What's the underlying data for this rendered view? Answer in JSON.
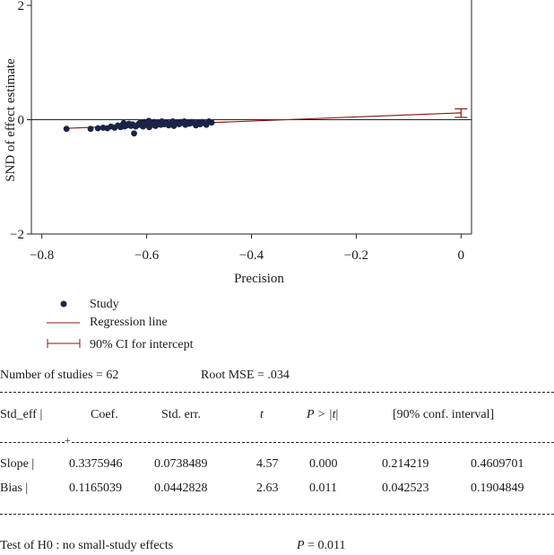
{
  "chart_data": {
    "type": "scatter",
    "xlabel": "Precision",
    "ylabel": "SND of effect estimate",
    "xlim": [
      -0.82,
      0.02
    ],
    "ylim": [
      -2.0,
      2.0
    ],
    "xticks": [
      -0.8,
      -0.6,
      -0.4,
      -0.2,
      0
    ],
    "xtick_labels": [
      "−0.8",
      "−0.6",
      "−0.4",
      "−0.2",
      "0"
    ],
    "yticks": [
      2,
      0,
      -2
    ],
    "ytick_labels": [
      "2",
      "0",
      "−2"
    ],
    "reference_line_y": 0,
    "regression_line": {
      "x": [
        -0.75,
        0.0
      ],
      "y": [
        -0.15,
        0.12
      ]
    },
    "intercept_ci": {
      "x": 0.0,
      "low": 0.04,
      "high": 0.19
    },
    "points": [
      {
        "x": -0.753,
        "y": -0.16
      },
      {
        "x": -0.707,
        "y": -0.16
      },
      {
        "x": -0.693,
        "y": -0.15
      },
      {
        "x": -0.683,
        "y": -0.14
      },
      {
        "x": -0.675,
        "y": -0.15
      },
      {
        "x": -0.668,
        "y": -0.12
      },
      {
        "x": -0.661,
        "y": -0.14
      },
      {
        "x": -0.655,
        "y": -0.1
      },
      {
        "x": -0.65,
        "y": -0.13
      },
      {
        "x": -0.646,
        "y": -0.09
      },
      {
        "x": -0.642,
        "y": -0.12
      },
      {
        "x": -0.638,
        "y": -0.1
      },
      {
        "x": -0.634,
        "y": -0.07
      },
      {
        "x": -0.63,
        "y": -0.11
      },
      {
        "x": -0.627,
        "y": -0.08
      },
      {
        "x": -0.624,
        "y": -0.24
      },
      {
        "x": -0.621,
        "y": -0.12
      },
      {
        "x": -0.618,
        "y": -0.1
      },
      {
        "x": -0.615,
        "y": -0.07
      },
      {
        "x": -0.611,
        "y": -0.09
      },
      {
        "x": -0.607,
        "y": -0.12
      },
      {
        "x": -0.604,
        "y": -0.04
      },
      {
        "x": -0.601,
        "y": -0.08
      },
      {
        "x": -0.598,
        "y": -0.1
      },
      {
        "x": -0.595,
        "y": -0.13
      },
      {
        "x": -0.592,
        "y": -0.06
      },
      {
        "x": -0.589,
        "y": -0.09
      },
      {
        "x": -0.586,
        "y": -0.04
      },
      {
        "x": -0.583,
        "y": -0.11
      },
      {
        "x": -0.58,
        "y": -0.08
      },
      {
        "x": -0.577,
        "y": -0.05
      },
      {
        "x": -0.573,
        "y": -0.09
      },
      {
        "x": -0.569,
        "y": -0.06
      },
      {
        "x": -0.566,
        "y": -0.08
      },
      {
        "x": -0.562,
        "y": -0.05
      },
      {
        "x": -0.558,
        "y": -0.1
      },
      {
        "x": -0.554,
        "y": -0.06
      },
      {
        "x": -0.55,
        "y": -0.03
      },
      {
        "x": -0.546,
        "y": -0.07
      },
      {
        "x": -0.542,
        "y": -0.05
      },
      {
        "x": -0.538,
        "y": -0.08
      },
      {
        "x": -0.534,
        "y": -0.04
      },
      {
        "x": -0.53,
        "y": -0.06
      },
      {
        "x": -0.526,
        "y": -0.09
      },
      {
        "x": -0.522,
        "y": -0.05
      },
      {
        "x": -0.518,
        "y": -0.07
      },
      {
        "x": -0.514,
        "y": -0.04
      },
      {
        "x": -0.51,
        "y": -0.06
      },
      {
        "x": -0.506,
        "y": -0.1
      },
      {
        "x": -0.502,
        "y": -0.05
      },
      {
        "x": -0.498,
        "y": -0.08
      },
      {
        "x": -0.494,
        "y": -0.04
      },
      {
        "x": -0.49,
        "y": -0.06
      },
      {
        "x": -0.486,
        "y": -0.09
      },
      {
        "x": -0.481,
        "y": -0.03
      },
      {
        "x": -0.476,
        "y": -0.05
      },
      {
        "x": -0.612,
        "y": -0.05
      },
      {
        "x": -0.596,
        "y": -0.02
      },
      {
        "x": -0.571,
        "y": -0.03
      },
      {
        "x": -0.548,
        "y": -0.11
      },
      {
        "x": -0.528,
        "y": -0.03
      },
      {
        "x": -0.644,
        "y": -0.06
      }
    ],
    "legend": {
      "position": "bottom-left",
      "entries": [
        "Study",
        "Regression line",
        "90% CI for intercept"
      ]
    },
    "colors": {
      "points": "#1b2346",
      "regression": "#8b1a1a",
      "axis": "#222222"
    }
  },
  "stats": {
    "n_studies": "Number of studies = 62",
    "root_mse": "Root MSE = .034",
    "headers": {
      "std_eff": "Std_eff |",
      "coef": "Coef.",
      "std_err": "Std. err.",
      "t": "t",
      "p_prefix": "P > |",
      "p_t": "t",
      "p_suffix": "|",
      "ci": "[90% conf. interval]"
    },
    "rows": [
      {
        "label": "Slope |",
        "coef": "0.3375946",
        "se": "0.0738489",
        "t": "4.57",
        "p": "0.000",
        "lo": "0.214219",
        "hi": "0.4609701"
      },
      {
        "label": "Bias |",
        "coef": "0.1165039",
        "se": "0.0442828",
        "t": "2.63",
        "p": "0.011",
        "lo": "0.042523",
        "hi": "0.1904849"
      }
    ],
    "plus_sign": "+",
    "test_label": "Test of H0 : no small-study effects",
    "test_p_label": "P",
    "test_p_value": " = 0.011"
  }
}
